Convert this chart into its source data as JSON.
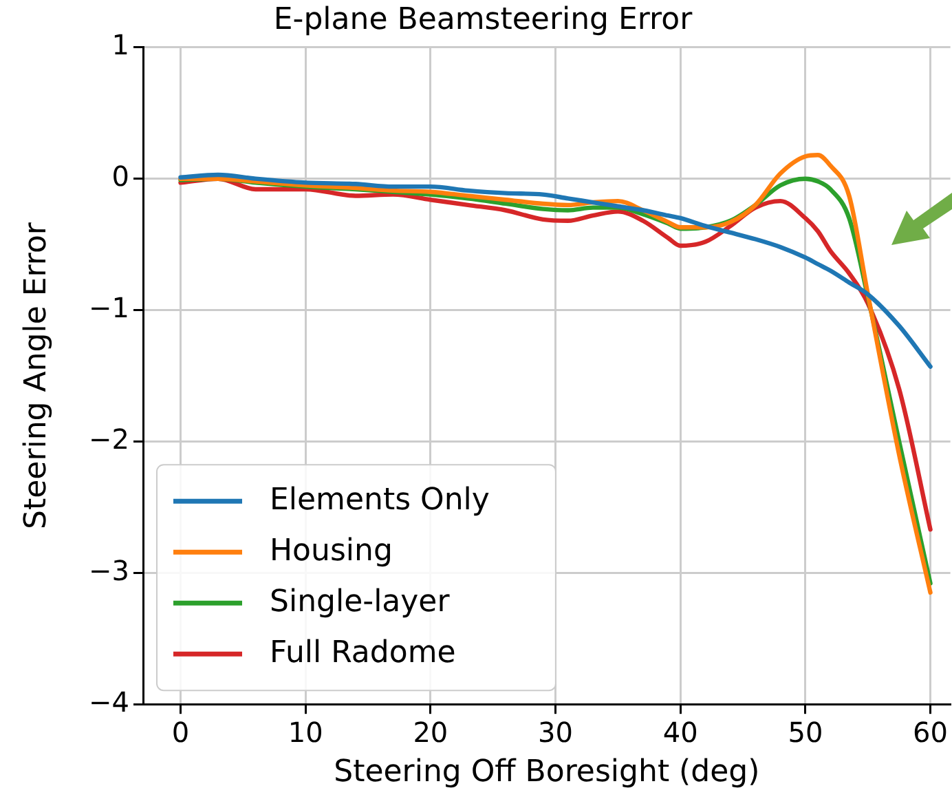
{
  "chart_data": {
    "type": "line",
    "title": "E-plane Beamsteering Error",
    "xlabel": "Steering Off Boresight (deg)",
    "ylabel": "Steering Angle Error",
    "x": [
      0,
      3,
      6,
      10,
      14,
      17,
      20,
      23,
      26,
      29,
      31,
      33,
      35,
      37,
      39,
      40,
      42,
      44,
      46,
      48,
      50,
      51,
      52,
      53.5,
      55,
      57.5,
      60
    ],
    "series": [
      {
        "name": "Elements Only",
        "color": "#1f77b4",
        "values": [
          0.01,
          0.03,
          0.0,
          -0.03,
          -0.04,
          -0.06,
          -0.06,
          -0.09,
          -0.11,
          -0.12,
          -0.15,
          -0.18,
          -0.21,
          -0.24,
          -0.28,
          -0.3,
          -0.36,
          -0.41,
          -0.46,
          -0.52,
          -0.6,
          -0.65,
          -0.7,
          -0.79,
          -0.88,
          -1.12,
          -1.43
        ]
      },
      {
        "name": "Housing",
        "color": "#ff7f0e",
        "values": [
          0.0,
          0.0,
          -0.02,
          -0.05,
          -0.07,
          -0.09,
          -0.1,
          -0.13,
          -0.16,
          -0.19,
          -0.2,
          -0.18,
          -0.17,
          -0.24,
          -0.33,
          -0.37,
          -0.37,
          -0.33,
          -0.2,
          0.04,
          0.17,
          0.18,
          0.1,
          -0.13,
          -0.88,
          -2.1,
          -3.15
        ]
      },
      {
        "name": "Single-layer",
        "color": "#2ca02c",
        "values": [
          -0.01,
          0.0,
          -0.03,
          -0.06,
          -0.08,
          -0.1,
          -0.12,
          -0.15,
          -0.19,
          -0.23,
          -0.24,
          -0.22,
          -0.22,
          -0.27,
          -0.34,
          -0.38,
          -0.37,
          -0.32,
          -0.2,
          -0.05,
          0.0,
          -0.02,
          -0.08,
          -0.3,
          -0.9,
          -2.0,
          -3.08
        ]
      },
      {
        "name": "Full Radome",
        "color": "#d62728",
        "values": [
          -0.03,
          0.0,
          -0.08,
          -0.08,
          -0.13,
          -0.12,
          -0.16,
          -0.2,
          -0.24,
          -0.31,
          -0.32,
          -0.28,
          -0.25,
          -0.32,
          -0.45,
          -0.51,
          -0.48,
          -0.36,
          -0.22,
          -0.17,
          -0.3,
          -0.4,
          -0.55,
          -0.72,
          -0.95,
          -1.6,
          -2.67
        ]
      }
    ],
    "xlim": [
      -3,
      61.6
    ],
    "xticks": [
      0,
      10,
      20,
      30,
      40,
      50,
      60
    ],
    "ylim": [
      -4,
      1
    ],
    "yticks": [
      {
        "value": -4,
        "label": "−4"
      },
      {
        "value": -3,
        "label": "−3"
      },
      {
        "value": -2,
        "label": "−2"
      },
      {
        "value": -1,
        "label": "−1"
      },
      0,
      1
    ],
    "grid": true,
    "legend": "bottom left",
    "marker": "none",
    "line_style": "solid"
  }
}
